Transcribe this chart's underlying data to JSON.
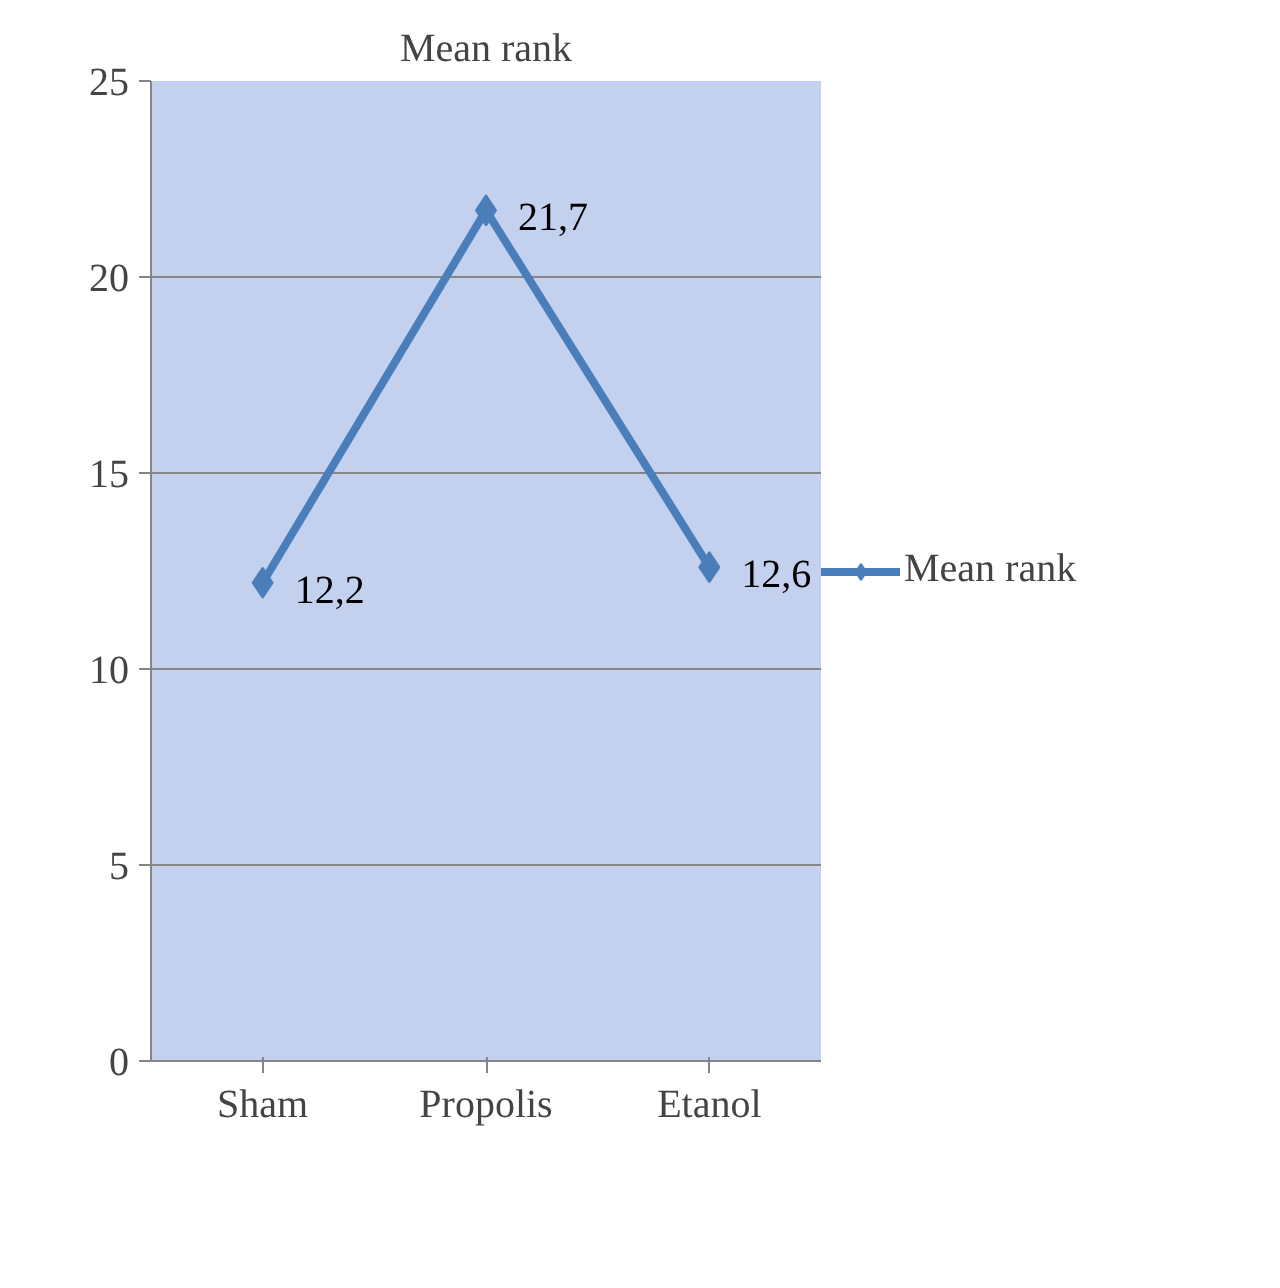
{
  "chart_data": {
    "type": "line",
    "title": "Mean rank",
    "categories": [
      "Sham",
      "Propolis",
      "Etanol"
    ],
    "series": [
      {
        "name": "Mean rank",
        "color": "#4a7ebb",
        "values": [
          12.2,
          21.7,
          12.6
        ],
        "value_labels": [
          "12,2",
          "21,7",
          "12,6"
        ]
      }
    ],
    "ylim": [
      0,
      25
    ],
    "yticks": [
      0,
      5,
      10,
      15,
      20,
      25
    ],
    "grid": "y",
    "legend": "right",
    "marker": "diamond",
    "line_style": "solid"
  }
}
